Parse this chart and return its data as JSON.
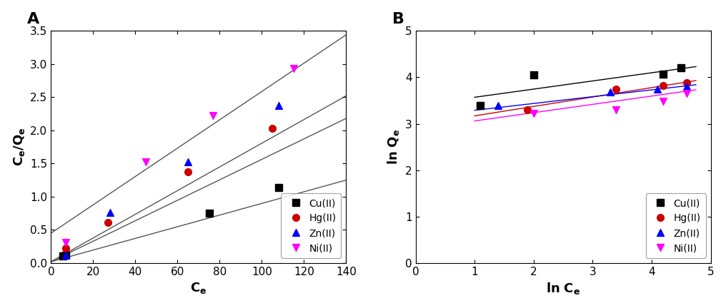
{
  "A": {
    "xlabel": "C_e",
    "ylabel": "C_e/Q_e",
    "xlim": [
      0,
      140
    ],
    "ylim": [
      0.0,
      3.5
    ],
    "xticks": [
      0,
      20,
      40,
      60,
      80,
      100,
      120,
      140
    ],
    "yticks": [
      0.0,
      0.5,
      1.0,
      1.5,
      2.0,
      2.5,
      3.0,
      3.5
    ],
    "series": [
      {
        "label": "Cu(II)",
        "color": "black",
        "marker": "s",
        "x": [
          5.5,
          7.0,
          75.0,
          108.0
        ],
        "y": [
          0.11,
          0.12,
          0.75,
          1.14
        ],
        "fit_x": [
          0,
          140
        ],
        "fit_y": [
          0.02,
          1.25
        ]
      },
      {
        "label": "Hg(II)",
        "color": "#cc0000",
        "marker": "o",
        "x": [
          7.0,
          27.0,
          65.0,
          105.0
        ],
        "y": [
          0.23,
          0.61,
          1.38,
          2.03
        ],
        "fit_x": [
          0,
          140
        ],
        "fit_y": [
          0.02,
          2.18
        ]
      },
      {
        "label": "Zn(II)",
        "color": "blue",
        "marker": "^",
        "x": [
          7.0,
          28.0,
          65.0,
          108.0
        ],
        "y": [
          0.12,
          0.76,
          1.53,
          2.37
        ],
        "fit_x": [
          0,
          140
        ],
        "fit_y": [
          0.02,
          2.52
        ]
      },
      {
        "label": "Ni(II)",
        "color": "magenta",
        "marker": "v",
        "x": [
          7.0,
          45.0,
          77.0,
          115.0
        ],
        "y": [
          0.31,
          1.53,
          2.22,
          2.93
        ],
        "fit_x": [
          0,
          140
        ],
        "fit_y": [
          0.45,
          3.44
        ]
      }
    ],
    "line_color": "#555555"
  },
  "B": {
    "xlabel": "ln C_e",
    "ylabel": "ln Q_e",
    "xlim": [
      0,
      5
    ],
    "ylim": [
      0,
      5
    ],
    "xticks": [
      0,
      1,
      2,
      3,
      4,
      5
    ],
    "yticks": [
      0,
      1,
      2,
      3,
      4,
      5
    ],
    "series": [
      {
        "label": "Cu(II)",
        "color": "black",
        "marker": "s",
        "x": [
          1.1,
          2.0,
          4.2,
          4.5
        ],
        "y": [
          3.4,
          4.06,
          4.07,
          4.2
        ],
        "fit_x": [
          1.0,
          4.75
        ],
        "fit_y": [
          3.57,
          4.23
        ]
      },
      {
        "label": "Hg(II)",
        "color": "#cc0000",
        "marker": "o",
        "x": [
          1.9,
          3.4,
          4.2,
          4.6
        ],
        "y": [
          3.3,
          3.75,
          3.83,
          3.88
        ],
        "fit_x": [
          1.0,
          4.75
        ],
        "fit_y": [
          3.17,
          3.93
        ]
      },
      {
        "label": "Zn(II)",
        "color": "blue",
        "marker": "^",
        "x": [
          1.4,
          3.3,
          4.1,
          4.6
        ],
        "y": [
          3.4,
          3.69,
          3.75,
          3.8
        ],
        "fit_x": [
          1.0,
          4.75
        ],
        "fit_y": [
          3.29,
          3.84
        ]
      },
      {
        "label": "Ni(II)",
        "color": "magenta",
        "marker": "v",
        "x": [
          2.0,
          3.4,
          4.2,
          4.6
        ],
        "y": [
          3.22,
          3.3,
          3.48,
          3.65
        ],
        "fit_x": [
          1.0,
          4.75
        ],
        "fit_y": [
          3.06,
          3.73
        ]
      }
    ]
  },
  "panel_labels": [
    "A",
    "B"
  ],
  "legend_fontsize": 10,
  "axis_label_fontsize": 13,
  "tick_fontsize": 11,
  "panel_label_fontsize": 16,
  "marker_size": 7,
  "line_width": 1.0
}
